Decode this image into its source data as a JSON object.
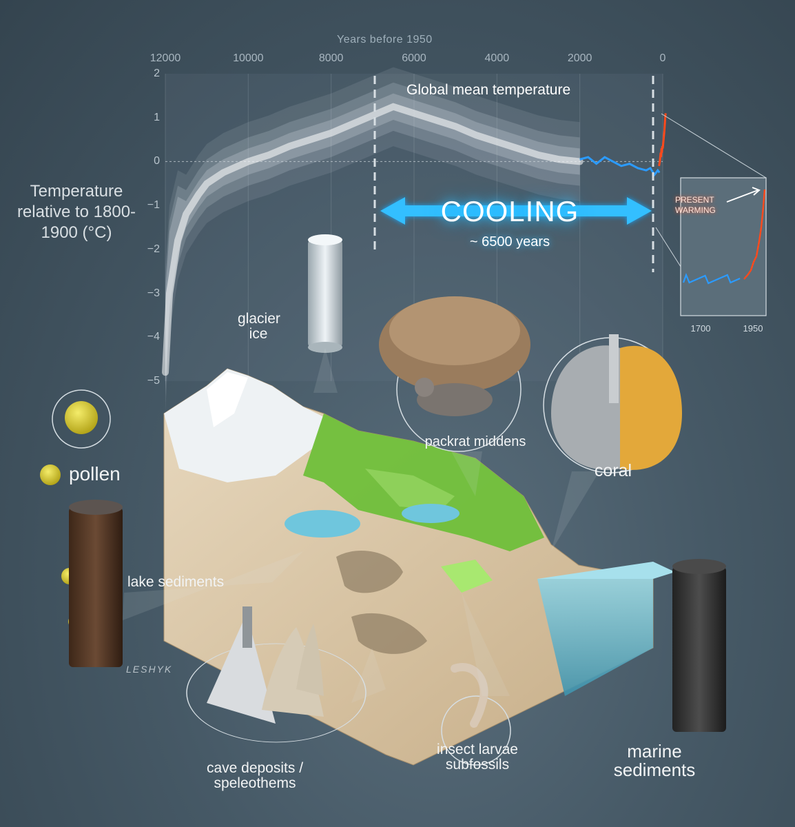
{
  "chart_data": {
    "type": "line",
    "title": "Global mean temperature",
    "xlabel": "Years before 1950",
    "ylabel": "Temperature relative to 1800-1900 (°C)",
    "xlim": [
      12000,
      0
    ],
    "ylim": [
      -5,
      2
    ],
    "x_ticks": [
      "12000",
      "10000",
      "8000",
      "6000",
      "4000",
      "2000",
      "0"
    ],
    "y_ticks": [
      "2",
      "1",
      "0",
      "−1",
      "−2",
      "−3",
      "−4",
      "−5"
    ],
    "series": [
      {
        "type": "band",
        "color": "#ffffff",
        "x": [
          12000,
          11900,
          11700,
          11500,
          11200,
          11000,
          10600,
          10000,
          9500,
          9000,
          8500,
          8000,
          7500,
          7000,
          6500,
          6000,
          5500,
          5000,
          4500,
          4000,
          3500,
          3000,
          2500,
          2000
        ],
        "values": [
          -4.8,
          -3.0,
          -1.8,
          -1.2,
          -0.75,
          -0.5,
          -0.25,
          0.0,
          0.15,
          0.35,
          0.5,
          0.65,
          0.85,
          1.05,
          1.25,
          1.1,
          0.95,
          0.8,
          0.6,
          0.45,
          0.3,
          0.15,
          0.05,
          0.0
        ]
      },
      {
        "type": "line",
        "color": "#2b9bff",
        "x": [
          2000,
          1800,
          1600,
          1400,
          1200,
          1000,
          800,
          600,
          400,
          300,
          200,
          120,
          80
        ],
        "values": [
          0.05,
          0.1,
          -0.05,
          0.1,
          0.0,
          -0.1,
          -0.05,
          -0.15,
          -0.2,
          -0.15,
          -0.3,
          -0.2,
          -0.25
        ]
      },
      {
        "type": "line",
        "color": "#ff4a1c",
        "x": [
          90,
          70,
          50,
          40,
          30,
          20,
          10,
          0,
          -20,
          -40,
          -60,
          -70
        ],
        "values": [
          -0.1,
          0.0,
          0.2,
          0.1,
          0.3,
          0.2,
          0.35,
          0.3,
          0.5,
          0.7,
          1.0,
          1.1
        ]
      }
    ],
    "annotations": {
      "cooling": {
        "label": "COOLING",
        "sublabel": "~ 6500 years",
        "from": 6500,
        "to": 0
      },
      "inset": {
        "label": "PRESENT\nWARMING",
        "x_ticks": [
          "1700",
          "1950"
        ]
      }
    }
  },
  "labels": {
    "glacier_ice": "glacier\nice",
    "pollen": "pollen",
    "packrat": "packrat middens",
    "coral": "coral",
    "lake": "lake sediments",
    "cave": "cave deposits /\nspeleothems",
    "insect": "insect larvae\nsubfossils",
    "marine": "marine\nsediments",
    "artist": "LESHYK"
  },
  "colors": {
    "background": "#465966",
    "cooling_glow": "#1aa8ff",
    "modern_blue": "#2b9bff",
    "modern_red": "#ff4a1c",
    "grass": "#6fbf3a",
    "water": "#5fb6cf"
  }
}
